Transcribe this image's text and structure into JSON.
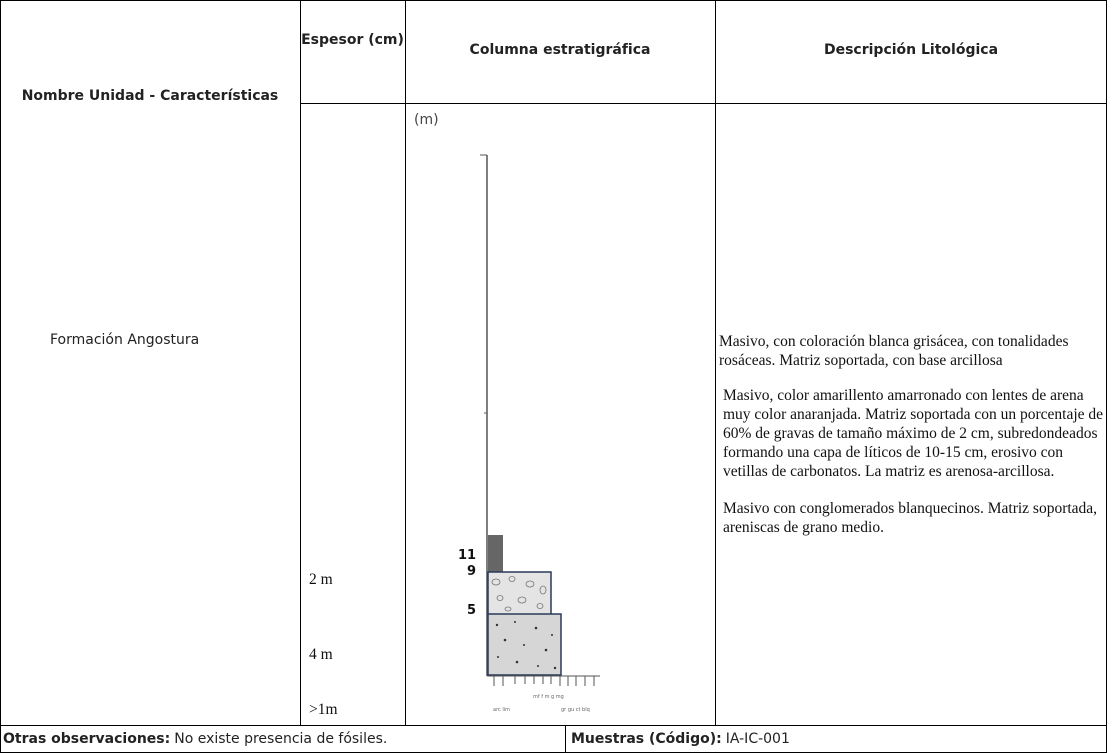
{
  "table": {
    "headers": [
      "Nombre Unidad - Características",
      "Espesor (cm)",
      "Columna estratigráfica",
      "Descripción Litológica"
    ],
    "unit_name": "Formación Angostura",
    "thicknesses": [
      "2 m",
      "4 m",
      ">1m"
    ],
    "column": {
      "unit_label": "(m)",
      "levels": [
        "11",
        "9",
        "5"
      ],
      "grain_labels": [
        "arc lim",
        "mf f m g mg",
        "gr gu ct blq"
      ]
    },
    "descriptions": [
      "Masivo, con coloración blanca grisácea, con tonalidades rosáceas. Matriz soportada, con base arcillosa",
      "Masivo, color amarillento amarronado con lentes de arena muy color anaranjada. Matriz soportada con un porcentaje de 60% de gravas de tamaño máximo de 2 cm, subredondeados formando una capa de líticos de 10-15 cm, erosivo con vetillas de carbonatos. La matriz es arenosa-arcillosa.",
      "Masivo con conglomerados blanquecinos. Matriz soportada, areniscas de grano medio."
    ]
  },
  "footer": {
    "observations_label": "Otras observaciones:",
    "observations": "No existe presencia de fósiles.",
    "samples_label": "Muestras (Código):",
    "samples": "IA-IC-001"
  }
}
